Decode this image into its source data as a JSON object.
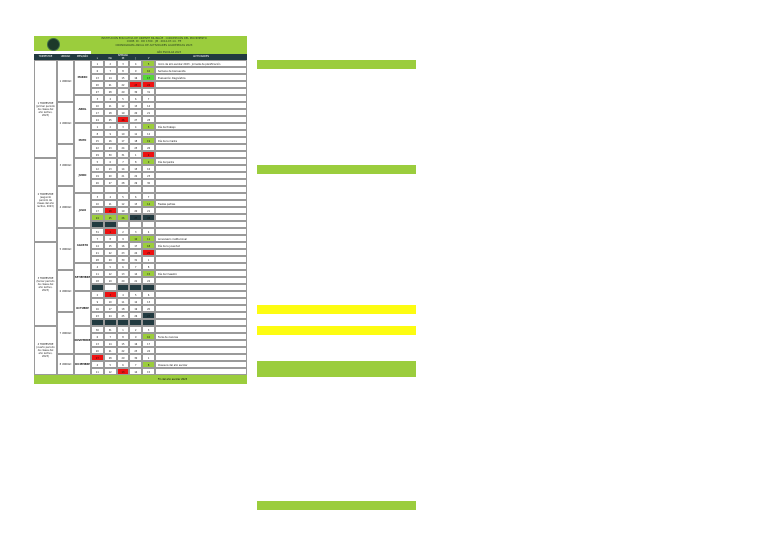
{
  "header": {
    "lines": [
      "INSTITUCIÓN EDUCATIVA DE ORIENTE BILINGÜE · CONCEPCIÓN DEL MOVIMIENTO",
      "CODE. ID · DD 1700 · JM · 2012-07-14 · FE",
      "CRONOGRAMA ANUAL DE ACTIVIDADES ACADÉMICAS 2023"
    ],
    "sub_title": "AÑO ESCOLAR 2023"
  },
  "columns": {
    "periodo": "TRIMESTRE",
    "unidad": "UNIDAD",
    "mes": "MES/AÑO",
    "dias_title": "SEMANA",
    "days": [
      "L",
      "MA",
      "MI",
      "J",
      "V"
    ],
    "actividades": "ACTIVIDADES"
  },
  "colors": {
    "green": "#9bcd3d",
    "dark": "#213a40",
    "red": "#ee1111",
    "yellow": "#fdfc11",
    "bright_green": "#58d63a"
  },
  "periods": [
    {
      "label": "1 TRIMESTRE (primer periodo de clases del año lectivo, 2023)"
    },
    {
      "label": "2 TRIMESTRE (segundo periodo de clases del año lectivo, 2023)"
    },
    {
      "label": "3 TRIMESTRE (tercer periodo de clases del año lectivo, 2023)"
    },
    {
      "label": "4 TRIMESTRE (cuarto periodo de clases del año lectivo, 2023)"
    }
  ],
  "units": [
    {
      "label": "1 UNIDAD"
    },
    {
      "label": "2 UNIDAD"
    },
    {
      "label": "3 UNIDAD"
    },
    {
      "label": "4 UNIDAD"
    },
    {
      "label": "5 UNIDAD"
    },
    {
      "label": "6 UNIDAD"
    },
    {
      "label": "7 UNIDAD"
    },
    {
      "label": "8 UNIDAD"
    }
  ],
  "months": [
    {
      "label": "MARZO",
      "row": 3
    },
    {
      "label": "ABRIL",
      "row": 9
    },
    {
      "label": "MAYO",
      "row": 14
    },
    {
      "label": "JUNIO",
      "row": 20
    },
    {
      "label": "JULIO",
      "row": 26
    },
    {
      "label": "AGOSTO",
      "row": 32
    },
    {
      "label": "SETIEMBRE",
      "row": 38
    },
    {
      "label": "OCTUBRE",
      "row": 44
    },
    {
      "label": "NOVIEMBRE",
      "row": 50
    },
    {
      "label": "DICIEMBRE",
      "row": 56
    }
  ],
  "weeks": [
    {
      "d": [
        "1",
        "2",
        "3",
        "4",
        "5"
      ],
      "c": [
        "",
        "",
        "",
        "",
        "g"
      ],
      "a": "Inicio de año escolar 2023 · Jornada de planificación"
    },
    {
      "d": [
        "6",
        "7",
        "8",
        "9",
        "10"
      ],
      "c": [
        "",
        "",
        "",
        "",
        "g"
      ],
      "a": "Semana de bienvenida"
    },
    {
      "d": [
        "13",
        "14",
        "15",
        "16",
        "17"
      ],
      "c": [
        "",
        "",
        "",
        "",
        "G"
      ],
      "a": "Evaluación diagnóstica"
    },
    {
      "d": [
        "20",
        "21",
        "22",
        "23",
        "24"
      ],
      "c": [
        "",
        "",
        "",
        "r",
        "r"
      ],
      "a": ""
    },
    {
      "d": [
        "27",
        "28",
        "29",
        "30",
        "31"
      ],
      "c": [
        "",
        "",
        "",
        "",
        ""
      ],
      "a": ""
    },
    {
      "d": [
        "3",
        "4",
        "5",
        "6",
        "7"
      ],
      "c": [
        "",
        "",
        "",
        "",
        ""
      ],
      "a": ""
    },
    {
      "d": [
        "10",
        "11",
        "12",
        "13",
        "14"
      ],
      "c": [
        "",
        "",
        "",
        "",
        ""
      ],
      "a": ""
    },
    {
      "d": [
        "17",
        "18",
        "19",
        "20",
        "21"
      ],
      "c": [
        "",
        "",
        "",
        "",
        ""
      ],
      "a": ""
    },
    {
      "d": [
        "24",
        "25",
        "26",
        "27",
        "28"
      ],
      "c": [
        "",
        "",
        "r",
        "",
        ""
      ],
      "a": ""
    },
    {
      "d": [
        "1",
        "2",
        "3",
        "4",
        "5"
      ],
      "c": [
        "",
        "",
        "",
        "",
        "g"
      ],
      "a": "Día del trabajo"
    },
    {
      "d": [
        "8",
        "9",
        "10",
        "11",
        "12"
      ],
      "c": [
        "",
        "",
        "",
        "",
        ""
      ],
      "a": ""
    },
    {
      "d": [
        "15",
        "16",
        "17",
        "18",
        "19"
      ],
      "c": [
        "",
        "",
        "",
        "",
        "g"
      ],
      "a": "Día de la madre"
    },
    {
      "d": [
        "22",
        "23",
        "24",
        "25",
        "26"
      ],
      "c": [
        "",
        "",
        "",
        "",
        ""
      ],
      "a": ""
    },
    {
      "d": [
        "29",
        "30",
        "31",
        "1",
        "2"
      ],
      "c": [
        "",
        "",
        "",
        "",
        "r"
      ],
      "a": ""
    },
    {
      "d": [
        "5",
        "6",
        "7",
        "8",
        "9"
      ],
      "c": [
        "",
        "",
        "",
        "",
        "g"
      ],
      "a": "Día del padre"
    },
    {
      "d": [
        "12",
        "13",
        "14",
        "15",
        "16"
      ],
      "c": [
        "",
        "",
        "",
        "",
        ""
      ],
      "a": ""
    },
    {
      "d": [
        "19",
        "20",
        "21",
        "22",
        "23"
      ],
      "c": [
        "",
        "",
        "",
        "",
        ""
      ],
      "a": ""
    },
    {
      "d": [
        "26",
        "27",
        "28",
        "29",
        "30"
      ],
      "c": [
        "",
        "",
        "",
        "",
        ""
      ],
      "a": ""
    },
    {
      "d": [
        "",
        "",
        "",
        "",
        ""
      ],
      "c": [
        "",
        "",
        "",
        "",
        ""
      ],
      "a": ""
    },
    {
      "d": [
        "3",
        "4",
        "5",
        "6",
        "7"
      ],
      "c": [
        "",
        "",
        "",
        "",
        ""
      ],
      "a": ""
    },
    {
      "d": [
        "10",
        "11",
        "12",
        "13",
        "14"
      ],
      "c": [
        "",
        "",
        "",
        "",
        "g"
      ],
      "a": "Fiestas patrias"
    },
    {
      "d": [
        "17",
        "18",
        "19",
        "20",
        "21"
      ],
      "c": [
        "",
        "r",
        "",
        "",
        ""
      ],
      "a": ""
    },
    {
      "d": [
        "24",
        "25",
        "26",
        "27",
        "28"
      ],
      "c": [
        "g",
        "g",
        "g",
        "d",
        "d"
      ],
      "a": ""
    },
    {
      "d": [
        "",
        "",
        "",
        "",
        ""
      ],
      "c": [
        "d",
        "d",
        "",
        "",
        ""
      ],
      "a": ""
    },
    {
      "d": [
        "31",
        "1",
        "2",
        "3",
        "4"
      ],
      "c": [
        "",
        "r",
        "",
        "",
        ""
      ],
      "a": ""
    },
    {
      "d": [
        "7",
        "8",
        "9",
        "10",
        "11"
      ],
      "c": [
        "",
        "",
        "",
        "g",
        "g"
      ],
      "a": "Aniversario institucional"
    },
    {
      "d": [
        "14",
        "15",
        "16",
        "17",
        "18"
      ],
      "c": [
        "",
        "",
        "",
        "",
        "g"
      ],
      "a": "Día de la juventud"
    },
    {
      "d": [
        "21",
        "22",
        "23",
        "24",
        "25"
      ],
      "c": [
        "",
        "",
        "",
        "",
        "r"
      ],
      "a": ""
    },
    {
      "d": [
        "28",
        "29",
        "30",
        "31",
        "1"
      ],
      "c": [
        "",
        "",
        "",
        "",
        ""
      ],
      "a": ""
    },
    {
      "d": [
        "4",
        "5",
        "6",
        "7",
        "8"
      ],
      "c": [
        "",
        "",
        "",
        "",
        ""
      ],
      "a": ""
    },
    {
      "d": [
        "11",
        "12",
        "13",
        "14",
        "15"
      ],
      "c": [
        "",
        "",
        "",
        "",
        "g"
      ],
      "a": "Día del maestro"
    },
    {
      "d": [
        "18",
        "19",
        "20",
        "21",
        "22"
      ],
      "c": [
        "",
        "",
        "",
        "",
        ""
      ],
      "a": ""
    },
    {
      "d": [
        "",
        "",
        "",
        "",
        ""
      ],
      "c": [
        "d",
        "",
        "d",
        "d",
        "d"
      ],
      "a": ""
    },
    {
      "d": [
        "2",
        "3",
        "4",
        "5",
        "6"
      ],
      "c": [
        "",
        "r",
        "",
        "",
        ""
      ],
      "a": ""
    },
    {
      "d": [
        "9",
        "10",
        "11",
        "12",
        "13"
      ],
      "c": [
        "",
        "",
        "",
        "",
        ""
      ],
      "a": ""
    },
    {
      "d": [
        "16",
        "17",
        "18",
        "19",
        "20"
      ],
      "c": [
        "",
        "",
        "",
        "",
        ""
      ],
      "a": ""
    },
    {
      "d": [
        "23",
        "24",
        "25",
        "26",
        "27"
      ],
      "c": [
        "",
        "",
        "",
        "",
        "d"
      ],
      "a": ""
    },
    {
      "d": [
        "",
        "",
        "",
        "",
        ""
      ],
      "c": [
        "d",
        "d",
        "d",
        "d",
        "d"
      ],
      "a": ""
    },
    {
      "d": [
        "30",
        "31",
        "1",
        "2",
        "3"
      ],
      "c": [
        "",
        "",
        "",
        "",
        ""
      ],
      "a": ""
    },
    {
      "d": [
        "6",
        "7",
        "8",
        "9",
        "10"
      ],
      "c": [
        "",
        "",
        "",
        "",
        "g"
      ],
      "a": "Feria de ciencias"
    },
    {
      "d": [
        "13",
        "14",
        "15",
        "16",
        "17"
      ],
      "c": [
        "",
        "",
        "",
        "",
        ""
      ],
      "a": ""
    },
    {
      "d": [
        "20",
        "21",
        "22",
        "23",
        "24"
      ],
      "c": [
        "",
        "",
        "",
        "",
        ""
      ],
      "a": ""
    },
    {
      "d": [
        "27",
        "28",
        "29",
        "30",
        "1"
      ],
      "c": [
        "r",
        "",
        "",
        "",
        ""
      ],
      "a": ""
    },
    {
      "d": [
        "4",
        "5",
        "6",
        "7",
        "8"
      ],
      "c": [
        "",
        "",
        "",
        "",
        "g"
      ],
      "a": "Clausura del año escolar"
    },
    {
      "d": [
        "11",
        "12",
        "13",
        "14",
        "15"
      ],
      "c": [
        "",
        "",
        "r",
        "",
        ""
      ],
      "a": ""
    }
  ],
  "footer_text": "Fin del año escolar 2023",
  "side_bands": [
    {
      "color": "green",
      "row": 0
    },
    {
      "color": "green",
      "row": 15
    },
    {
      "color": "yellow",
      "row": 35
    },
    {
      "color": "yellow",
      "row": 38
    },
    {
      "color": "green",
      "row": 43
    },
    {
      "color": "green",
      "row": 44
    },
    {
      "color": "green",
      "row": 63
    }
  ]
}
